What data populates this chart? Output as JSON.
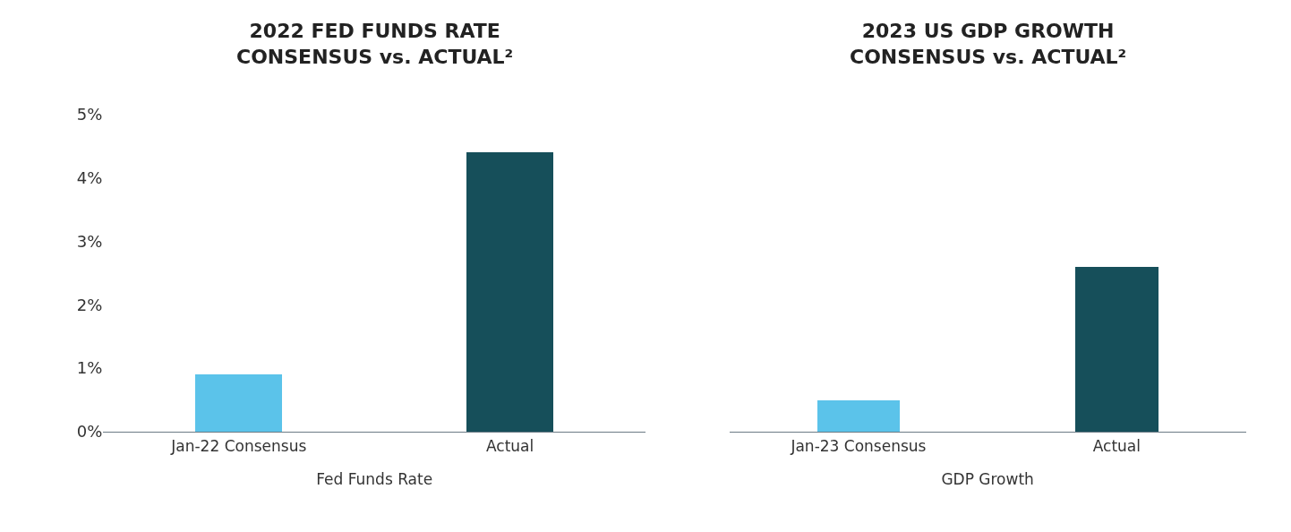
{
  "chart_data": [
    {
      "type": "bar",
      "title": "2022 FED FUNDS RATE\nCONSENSUS vs. ACTUAL²",
      "xlabel": "Fed Funds Rate",
      "categories": [
        "Jan-22 Consensus",
        "Actual"
      ],
      "values": [
        0.9,
        4.4
      ],
      "colors": [
        "#5bc3ea",
        "#164f5a"
      ],
      "ylim": [
        0,
        5
      ],
      "yticks": [
        {
          "value": 0,
          "label": "0%"
        },
        {
          "value": 1,
          "label": "1%"
        },
        {
          "value": 2,
          "label": "2%"
        },
        {
          "value": 3,
          "label": "3%"
        },
        {
          "value": 4,
          "label": "4%"
        },
        {
          "value": 5,
          "label": "5%"
        }
      ]
    },
    {
      "type": "bar",
      "title": "2023 US GDP GROWTH\nCONSENSUS vs. ACTUAL²",
      "xlabel": "GDP Growth",
      "categories": [
        "Jan-23 Consensus",
        "Actual"
      ],
      "values": [
        0.5,
        2.6
      ],
      "colors": [
        "#5bc3ea",
        "#164f5a"
      ],
      "ylim": [
        0,
        5
      ],
      "tick_labels": "x"
    }
  ]
}
